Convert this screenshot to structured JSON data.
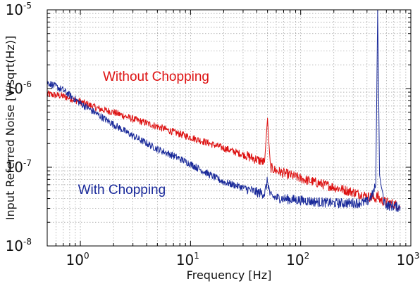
{
  "chart_data": {
    "type": "line",
    "title": "",
    "xlabel": "Frequency [Hz]",
    "ylabel": "Input Referred Noise [V/sqrt(Hz)]",
    "x_scale": "log",
    "y_scale": "log",
    "xlim": [
      0.5,
      1000
    ],
    "ylim": [
      1e-08,
      1e-05
    ],
    "grid": true,
    "legend": "none",
    "x_ticks": [
      {
        "base": "10",
        "exp": "0"
      },
      {
        "base": "10",
        "exp": "1"
      },
      {
        "base": "10",
        "exp": "2"
      },
      {
        "base": "10",
        "exp": "3"
      }
    ],
    "y_ticks": [
      {
        "base": "10",
        "exp": "-8"
      },
      {
        "base": "10",
        "exp": "-7"
      },
      {
        "base": "10",
        "exp": "-6"
      },
      {
        "base": "10",
        "exp": "-5"
      }
    ],
    "annotations": [
      {
        "text": "Without Chopping",
        "color": "#dd1111"
      },
      {
        "text": "With Chopping",
        "color": "#1a2a9a"
      }
    ],
    "series": [
      {
        "color": "#dd1111",
        "x": [
          0.5,
          0.7,
          1.0,
          1.5,
          2,
          3,
          5,
          7,
          10,
          15,
          20,
          30,
          40,
          47,
          50,
          53,
          60,
          80,
          100,
          150,
          200,
          300,
          400,
          450,
          480,
          500,
          520,
          560,
          600,
          700,
          800
        ],
        "y": [
          8.5e-07,
          8e-07,
          6.8e-07,
          5.5e-07,
          5e-07,
          4.1e-07,
          3.3e-07,
          2.8e-07,
          2.4e-07,
          2e-07,
          1.75e-07,
          1.45e-07,
          1.25e-07,
          1.15e-07,
          4.2e-07,
          1e-07,
          9e-08,
          8e-08,
          7.2e-08,
          6.2e-08,
          5.6e-08,
          4.8e-08,
          4.3e-08,
          4.1e-08,
          4e-08,
          4.4e-08,
          3.9e-08,
          3.7e-08,
          3.6e-08,
          3.4e-08,
          3.2e-08
        ]
      },
      {
        "color": "#1a2a9a",
        "x": [
          0.5,
          0.7,
          1.0,
          1.5,
          2,
          3,
          5,
          7,
          10,
          15,
          20,
          30,
          40,
          47,
          50,
          53,
          60,
          80,
          100,
          150,
          200,
          300,
          400,
          450,
          480,
          500,
          520,
          560,
          600,
          700,
          800
        ],
        "y": [
          1.2e-06,
          9.5e-07,
          6.5e-07,
          4.5e-07,
          3.5e-07,
          2.5e-07,
          1.7e-07,
          1.4e-07,
          1.1e-07,
          8e-08,
          6.5e-08,
          5.5e-08,
          4.8e-08,
          4.6e-08,
          6.8e-08,
          4.3e-08,
          4.1e-08,
          3.9e-08,
          3.8e-08,
          3.6e-08,
          3.5e-08,
          3.5e-08,
          3.6e-08,
          4.5e-08,
          6e-08,
          1e-05,
          8e-08,
          4e-08,
          3.3e-08,
          3.2e-08,
          3.1e-08
        ]
      }
    ]
  }
}
